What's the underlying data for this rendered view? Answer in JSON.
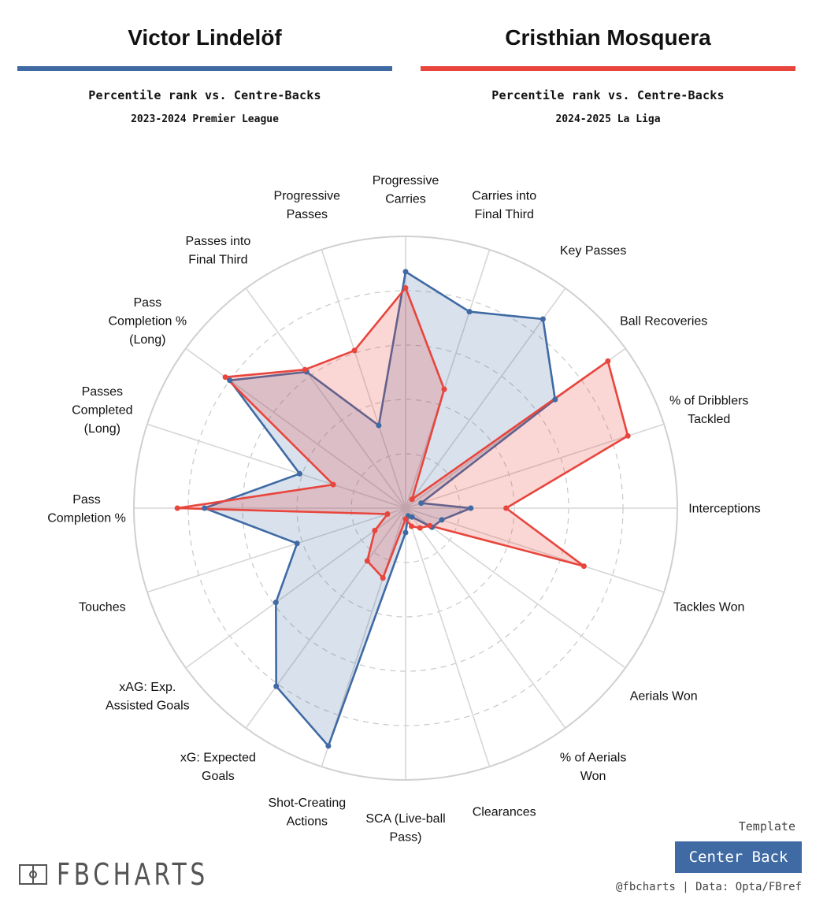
{
  "players": {
    "left": {
      "name": "Victor Lindelöf",
      "subtitle": "Percentile rank vs. Centre-Backs",
      "season": "2023-2024 Premier League",
      "color": "#3f6aa3"
    },
    "right": {
      "name": "Cristhian Mosquera",
      "subtitle": "Percentile rank vs. Centre-Backs",
      "season": "2024-2025 La Liga",
      "color": "#e8453c"
    }
  },
  "template": {
    "label": "Template",
    "value": "Center Back"
  },
  "credit": "@fbcharts | Data: Opta/FBref",
  "logo": {
    "text": "FBCHARTS"
  },
  "chart_data": {
    "type": "radar",
    "rmax": 100,
    "grid_rings": [
      20,
      40,
      60,
      80
    ],
    "categories": [
      [
        "Progressive",
        "Carries"
      ],
      [
        "Carries into",
        "Final Third"
      ],
      [
        "Key Passes"
      ],
      [
        "Ball Recoveries"
      ],
      [
        "% of Dribblers",
        "Tackled"
      ],
      [
        "Interceptions"
      ],
      [
        "Tackles Won"
      ],
      [
        "Aerials Won"
      ],
      [
        "% of Aerials",
        "Won"
      ],
      [
        "Clearances"
      ],
      [
        "SCA (Live-ball",
        "Pass)"
      ],
      [
        "Shot-Creating",
        "Actions"
      ],
      [
        "xG: Expected",
        "Goals"
      ],
      [
        "xAG: Exp.",
        "Assisted Goals"
      ],
      [
        "Touches"
      ],
      [
        "Pass",
        "Completion %"
      ],
      [
        "Passes",
        "Completed",
        "(Long)"
      ],
      [
        "Pass",
        "Completion %",
        "(Long)"
      ],
      [
        "Passes into",
        "Final Third"
      ],
      [
        "Progressive",
        "Passes"
      ]
    ],
    "series": [
      {
        "name": "Victor Lindelöf",
        "values": [
          87,
          76,
          86,
          68,
          6,
          24,
          14,
          12,
          4,
          3,
          9,
          92,
          81,
          59,
          42,
          74,
          41,
          80,
          62,
          32
        ]
      },
      {
        "name": "Cristhian Mosquera",
        "values": [
          81,
          46,
          4,
          92,
          86,
          37,
          69,
          11,
          9,
          7,
          4,
          27,
          24,
          14,
          7,
          84,
          28,
          82,
          63,
          61
        ]
      }
    ]
  }
}
